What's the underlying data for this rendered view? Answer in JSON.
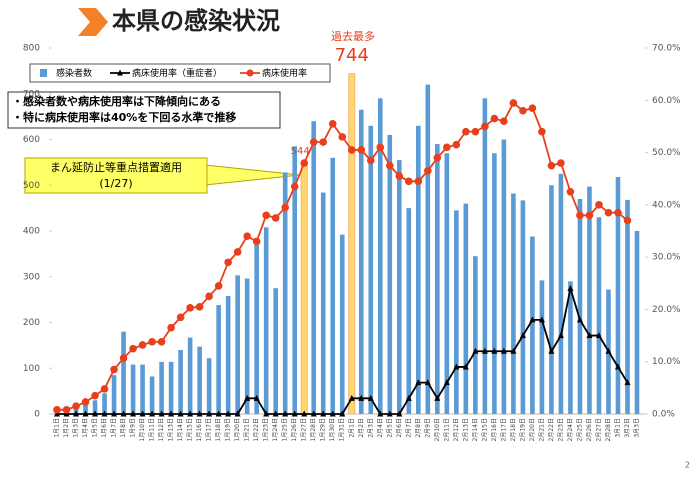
{
  "header": {
    "title": "本県の感染状況"
  },
  "page_number": "2",
  "chart_data": {
    "type": "bar",
    "grid": false,
    "categories": [
      "1月1日",
      "1月2日",
      "1月3日",
      "1月4日",
      "1月5日",
      "1月6日",
      "1月7日",
      "1月8日",
      "1月9日",
      "1月10日",
      "1月11日",
      "1月12日",
      "1月13日",
      "1月14日",
      "1月15日",
      "1月16日",
      "1月17日",
      "1月18日",
      "1月19日",
      "1月20日",
      "1月21日",
      "1月22日",
      "1月23日",
      "1月24日",
      "1月25日",
      "1月26日",
      "1月27日",
      "1月28日",
      "1月29日",
      "1月30日",
      "1月31日",
      "2月1日",
      "2月2日",
      "2月3日",
      "2月4日",
      "2月5日",
      "2月6日",
      "2月7日",
      "2月8日",
      "2月9日",
      "2月10日",
      "2月11日",
      "2月12日",
      "2月13日",
      "2月14日",
      "2月15日",
      "2月16日",
      "2月17日",
      "2月18日",
      "2月19日",
      "2月20日",
      "2月21日",
      "2月22日",
      "2月23日",
      "2月24日",
      "2月25日",
      "2月26日",
      "2月27日",
      "2月28日",
      "3月1日",
      "3月2日",
      "3月3日"
    ],
    "ylim": [
      0,
      800
    ],
    "yticks": [
      0,
      100,
      200,
      300,
      400,
      500,
      600,
      700,
      800
    ],
    "y2lim": [
      0,
      70
    ],
    "y2ticks": [
      {
        "value": 0,
        "label": "0.0%"
      },
      {
        "value": 10,
        "label": "10.0%"
      },
      {
        "value": 20,
        "label": "20.0%"
      },
      {
        "value": 30,
        "label": "30.0%"
      },
      {
        "value": 40,
        "label": "40.0%"
      },
      {
        "value": 50,
        "label": "50.0%"
      },
      {
        "value": 60,
        "label": "60.0%"
      },
      {
        "value": 70,
        "label": "70.0%"
      }
    ],
    "legend": "top-left",
    "series": [
      {
        "name": "感染者数",
        "type": "bar",
        "color": "#5b9bd5",
        "highlight": {
          "indices": [
            26,
            31
          ],
          "color": "#ffd966",
          "stroke": "#f4b183"
        },
        "values": [
          5,
          3,
          10,
          20,
          30,
          45,
          85,
          180,
          108,
          108,
          82,
          114,
          114,
          140,
          167,
          147,
          122,
          238,
          258,
          303,
          296,
          370,
          408,
          275,
          528,
          585,
          544,
          640,
          484,
          560,
          392,
          744,
          665,
          630,
          690,
          610,
          555,
          450,
          630,
          720,
          590,
          570,
          445,
          460,
          345,
          690,
          570,
          600,
          482,
          467,
          388,
          292,
          500,
          525,
          290,
          470,
          497,
          430,
          272,
          518,
          468,
          400
        ]
      },
      {
        "name": "病床使用率（重症者）",
        "type": "line",
        "axis": "y2",
        "color": "#000000",
        "marker": "triangle",
        "values": [
          0,
          0,
          0,
          0,
          0,
          0,
          0,
          0,
          0,
          0,
          0,
          0,
          0,
          0,
          0,
          0,
          0,
          0,
          0,
          0,
          3,
          3,
          0,
          0,
          0,
          0,
          0,
          0,
          0,
          0,
          0,
          3,
          3,
          3,
          0,
          0,
          0,
          3,
          6,
          6,
          3,
          6,
          9,
          9,
          12,
          12,
          12,
          12,
          12,
          15,
          18,
          18,
          12,
          15,
          24,
          18,
          15,
          15,
          12,
          9,
          6,
          null
        ]
      },
      {
        "name": "病床使用率",
        "type": "line",
        "axis": "y2",
        "color": "#e8401c",
        "marker": "circle",
        "values": [
          0.8,
          0.8,
          1.5,
          2.3,
          3.5,
          4.8,
          8.5,
          10.7,
          12.5,
          13.2,
          13.8,
          13.8,
          16.5,
          18.5,
          20.3,
          20.5,
          22.5,
          24.5,
          29,
          31,
          34,
          33,
          38,
          37.5,
          39.5,
          43.5,
          48,
          52,
          52,
          55.5,
          53,
          50.5,
          50.5,
          48.5,
          51,
          47.5,
          45.5,
          44.5,
          44.5,
          46.5,
          49,
          51,
          51.5,
          54,
          54,
          55,
          56.5,
          56,
          59.5,
          58,
          58.5,
          54,
          47.5,
          48,
          42.5,
          38,
          38,
          40,
          38.5,
          38.5,
          37,
          null
        ]
      }
    ],
    "annotations": {
      "notes": [
        "・感染者数や病床使用率は下降傾向にある",
        "・特に病床使用率は40%を下回る水準で推移"
      ],
      "measure": {
        "text": "まん延防止等重点措置適用",
        "date": "(1/27)"
      },
      "record": "過去最多"
    }
  }
}
